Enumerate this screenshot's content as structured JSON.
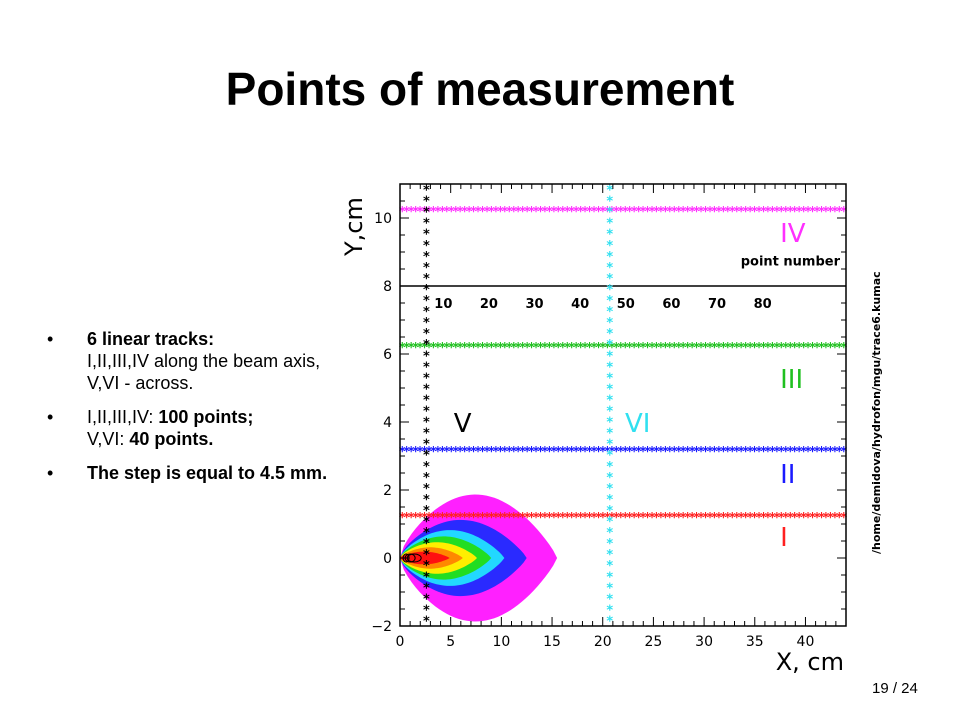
{
  "slide": {
    "title": "Points of measurement",
    "page": "19 / 24"
  },
  "bullets": [
    {
      "bold": "6 linear tracks:",
      "lines": [
        "I,II,III,IV along the beam axis,",
        "V,VI -  across."
      ]
    },
    {
      "plain": "I,II,III,IV: ",
      "bold1": "100 points;",
      "plain2": "V,VI: ",
      "bold2": "40 points."
    },
    {
      "bold": "The step is equal to 4.5 mm."
    }
  ],
  "colors": {
    "track_I": "#ff2020",
    "track_II": "#1a1aff",
    "track_III": "#20c020",
    "track_IV": "#ff30ff",
    "track_V": "#000000",
    "track_VI": "#30e0f0",
    "beam_outer": "#ff20ff"
  },
  "chart_data": {
    "type": "scatter",
    "xlabel": "X, cm",
    "ylabel": "Y,cm",
    "xlim": [
      0,
      44
    ],
    "ylim": [
      -2,
      11
    ],
    "x_ticks": [
      "0",
      "5",
      "10",
      "15",
      "20",
      "25",
      "30",
      "35",
      "40"
    ],
    "y_ticks": [
      "−2",
      "0",
      "2",
      "4",
      "6",
      "8",
      "10"
    ],
    "x_tick_values": [
      0,
      5,
      10,
      15,
      20,
      25,
      30,
      35,
      40
    ],
    "y_tick_values": [
      -2,
      0,
      2,
      4,
      6,
      8,
      10
    ],
    "grid": false,
    "point_number_axis": {
      "label": "point number",
      "labels": [
        "10",
        "20",
        "30",
        "40",
        "50",
        "60",
        "70",
        "80"
      ],
      "values": [
        10,
        20,
        30,
        40,
        50,
        60,
        70,
        80
      ],
      "y": 7.5
    },
    "divider_y": 8,
    "series": [
      {
        "name": "I",
        "orientation": "horizontal",
        "y": 1.2,
        "x_range": [
          0,
          44
        ]
      },
      {
        "name": "II",
        "orientation": "horizontal",
        "y": 3.15,
        "x_range": [
          0,
          44
        ]
      },
      {
        "name": "III",
        "orientation": "horizontal",
        "y": 6.2,
        "x_range": [
          0,
          44
        ]
      },
      {
        "name": "IV",
        "orientation": "horizontal",
        "y": 10.2,
        "x_range": [
          0,
          44
        ]
      },
      {
        "name": "V",
        "orientation": "vertical",
        "x": 2.6,
        "y_range": [
          -2,
          11
        ]
      },
      {
        "name": "VI",
        "orientation": "vertical",
        "x": 20.7,
        "y_range": [
          -2,
          11
        ]
      }
    ],
    "series_labels": [
      {
        "text": "I",
        "x": 37.5,
        "y": 0.35
      },
      {
        "text": "II",
        "x": 37.5,
        "y": 2.2
      },
      {
        "text": "III",
        "x": 37.5,
        "y": 5.0
      },
      {
        "text": "IV",
        "x": 37.5,
        "y": 9.3
      },
      {
        "text": "V",
        "x": 5.3,
        "y": 3.7
      },
      {
        "text": "VI",
        "x": 22.2,
        "y": 3.7
      }
    ],
    "side_text": "/home/demidova/hydrofon/mgu/trace6.kumac"
  }
}
